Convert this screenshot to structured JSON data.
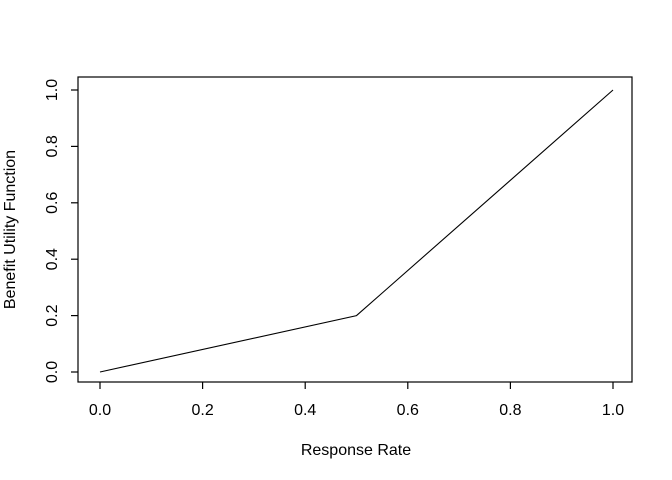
{
  "chart_data": {
    "type": "line",
    "title": "",
    "xlabel": "Response Rate",
    "ylabel": "Benefit Utility Function",
    "series": [
      {
        "name": "benefit-utility-function",
        "x": [
          0.0,
          0.5,
          1.0
        ],
        "y": [
          0.0,
          0.2,
          1.0
        ]
      }
    ],
    "xlim": [
      0.0,
      1.0
    ],
    "ylim": [
      0.0,
      1.0
    ],
    "x_ticks": [
      "0.0",
      "0.2",
      "0.4",
      "0.6",
      "0.8",
      "1.0"
    ],
    "y_ticks": [
      "0.0",
      "0.2",
      "0.4",
      "0.6",
      "0.8",
      "1.0"
    ],
    "grid": false,
    "legend_position": "none",
    "line_color": "#000000",
    "axis_color": "#000000",
    "background_color": "#ffffff"
  }
}
